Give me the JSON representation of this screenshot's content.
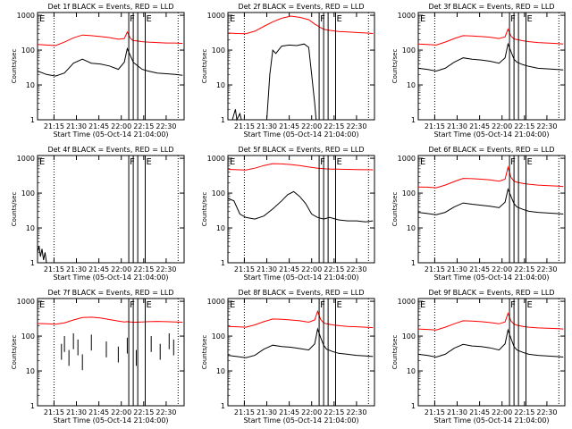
{
  "colors": {
    "events": "#000000",
    "lld": "#ff0000",
    "background": "#ffffff"
  },
  "common": {
    "xlabel": "Start Time (05-Oct-14 21:04:00)",
    "ylabel": "Counts/sec",
    "x_ticks": [
      "21:15",
      "21:30",
      "21:45",
      "22:00",
      "22:15",
      "22:30"
    ],
    "y_ticks": [
      "1",
      "10",
      "100",
      "1000"
    ],
    "flag_f": "F",
    "flag_e": "E"
  },
  "chart_data": [
    {
      "type": "line",
      "title": "Det 1f BLACK = Events, RED = LLD",
      "xlabel": "Start Time (05-Oct-14 21:04:00)",
      "ylabel": "Counts/sec",
      "xlim": [
        "21:04",
        "22:42"
      ],
      "ylim": [
        1,
        1200
      ],
      "yscale": "log",
      "dotted_vlines": [
        "21:15",
        "22:16",
        "22:38"
      ],
      "solid_vlines": [
        "22:05",
        "22:08",
        "22:11",
        "22:16"
      ],
      "series": [
        {
          "name": "Events",
          "color": "#000000",
          "x": [
            "21:04",
            "21:10",
            "21:16",
            "21:22",
            "21:28",
            "21:34",
            "21:40",
            "21:46",
            "21:52",
            "21:58",
            "22:02",
            "22:04",
            "22:06",
            "22:08",
            "22:10",
            "22:14",
            "22:18",
            "22:24",
            "22:30",
            "22:36",
            "22:41"
          ],
          "y": [
            25,
            20,
            18,
            22,
            42,
            55,
            42,
            40,
            35,
            28,
            45,
            110,
            70,
            45,
            38,
            28,
            25,
            22,
            21,
            20,
            19
          ]
        },
        {
          "name": "LLD",
          "color": "#ff0000",
          "x": [
            "21:04",
            "21:10",
            "21:16",
            "21:22",
            "21:28",
            "21:34",
            "21:40",
            "21:46",
            "21:52",
            "21:58",
            "22:02",
            "22:04",
            "22:06",
            "22:08",
            "22:10",
            "22:14",
            "22:18",
            "22:24",
            "22:30",
            "22:36",
            "22:41"
          ],
          "y": [
            145,
            140,
            135,
            170,
            225,
            270,
            260,
            245,
            230,
            205,
            215,
            330,
            220,
            185,
            185,
            175,
            170,
            165,
            160,
            160,
            155
          ]
        }
      ]
    },
    {
      "type": "line",
      "title": "Det 2f BLACK = Events, RED = LLD",
      "xlabel": "Start Time (05-Oct-14 21:04:00)",
      "ylabel": "Counts/sec",
      "xlim": [
        "21:04",
        "22:42"
      ],
      "ylim": [
        1,
        1200
      ],
      "yscale": "log",
      "dotted_vlines": [
        "21:15",
        "22:16",
        "22:38"
      ],
      "solid_vlines": [
        "22:05",
        "22:08",
        "22:11",
        "22:16"
      ],
      "series": [
        {
          "name": "Events",
          "color": "#000000",
          "x": [
            "21:07",
            "21:09",
            "21:10",
            "21:12",
            "21:13",
            "21:30",
            "21:32",
            "21:34",
            "21:36",
            "21:40",
            "21:45",
            "21:50",
            "21:55",
            "21:58",
            "22:00",
            "22:02",
            "22:03"
          ],
          "y": [
            1,
            2,
            1,
            1.5,
            1,
            1,
            20,
            100,
            80,
            130,
            140,
            135,
            150,
            120,
            20,
            3,
            1
          ]
        },
        {
          "name": "LLD",
          "color": "#ff0000",
          "x": [
            "21:04",
            "21:10",
            "21:16",
            "21:22",
            "21:28",
            "21:34",
            "21:40",
            "21:46",
            "21:52",
            "21:58",
            "22:02",
            "22:04",
            "22:06",
            "22:08",
            "22:10",
            "22:14",
            "22:18",
            "22:24",
            "22:30",
            "22:36",
            "22:41"
          ],
          "y": [
            310,
            300,
            295,
            350,
            480,
            650,
            820,
            950,
            870,
            750,
            560,
            500,
            440,
            400,
            380,
            360,
            340,
            330,
            320,
            310,
            300
          ]
        }
      ]
    },
    {
      "type": "line",
      "title": "Det 3f BLACK = Events, RED = LLD",
      "xlabel": "Start Time (05-Oct-14 21:04:00)",
      "ylabel": "Counts/sec",
      "xlim": [
        "21:04",
        "22:42"
      ],
      "ylim": [
        1,
        1200
      ],
      "yscale": "log",
      "dotted_vlines": [
        "21:15",
        "22:16",
        "22:38"
      ],
      "solid_vlines": [
        "22:05",
        "22:08",
        "22:11",
        "22:16"
      ],
      "series": [
        {
          "name": "Events",
          "color": "#000000",
          "x": [
            "21:04",
            "21:10",
            "21:16",
            "21:22",
            "21:28",
            "21:34",
            "21:40",
            "21:46",
            "21:52",
            "21:58",
            "22:02",
            "22:04",
            "22:06",
            "22:08",
            "22:10",
            "22:14",
            "22:18",
            "22:24",
            "22:30",
            "22:36",
            "22:41"
          ],
          "y": [
            30,
            28,
            25,
            30,
            45,
            60,
            55,
            52,
            48,
            42,
            60,
            150,
            90,
            55,
            45,
            38,
            34,
            30,
            29,
            28,
            27
          ]
        },
        {
          "name": "LLD",
          "color": "#ff0000",
          "x": [
            "21:04",
            "21:10",
            "21:16",
            "21:22",
            "21:28",
            "21:34",
            "21:40",
            "21:46",
            "21:52",
            "21:58",
            "22:02",
            "22:04",
            "22:06",
            "22:08",
            "22:10",
            "22:14",
            "22:18",
            "22:24",
            "22:30",
            "22:36",
            "22:41"
          ],
          "y": [
            150,
            145,
            140,
            170,
            215,
            260,
            255,
            245,
            235,
            215,
            240,
            400,
            250,
            210,
            200,
            185,
            175,
            165,
            160,
            155,
            150
          ]
        }
      ]
    },
    {
      "type": "line",
      "title": "Det 4f BLACK = Events, RED = LLD",
      "xlabel": "Start Time (05-Oct-14 21:04:00)",
      "ylabel": "Counts/sec",
      "xlim": [
        "21:04",
        "22:42"
      ],
      "ylim": [
        1,
        1200
      ],
      "yscale": "log",
      "dotted_vlines": [
        "21:15",
        "22:16",
        "22:38"
      ],
      "solid_vlines": [
        "22:05",
        "22:08",
        "22:11",
        "22:16"
      ],
      "series": [
        {
          "name": "Events",
          "color": "#000000",
          "x": [
            "21:04",
            "21:05",
            "21:06",
            "21:07",
            "21:08",
            "21:09",
            "21:10"
          ],
          "y": [
            2,
            3,
            1.5,
            2.5,
            1.2,
            2,
            1
          ]
        }
      ]
    },
    {
      "type": "line",
      "title": "Det 5f BLACK = Events, RED = LLD",
      "xlabel": "Start Time (05-Oct-14 21:04:00)",
      "ylabel": "Counts/sec",
      "xlim": [
        "21:04",
        "22:42"
      ],
      "ylim": [
        1,
        1200
      ],
      "yscale": "log",
      "dotted_vlines": [
        "21:15",
        "22:16",
        "22:38"
      ],
      "solid_vlines": [
        "22:05",
        "22:08",
        "22:11",
        "22:16"
      ],
      "series": [
        {
          "name": "Events",
          "color": "#000000",
          "x": [
            "21:04",
            "21:08",
            "21:12",
            "21:16",
            "21:22",
            "21:28",
            "21:34",
            "21:40",
            "21:44",
            "21:48",
            "21:52",
            "21:56",
            "22:00",
            "22:04",
            "22:08",
            "22:12",
            "22:18",
            "22:24",
            "22:30",
            "22:36",
            "22:41"
          ],
          "y": [
            70,
            60,
            25,
            20,
            18,
            22,
            35,
            60,
            90,
            110,
            80,
            50,
            25,
            20,
            18,
            20,
            17,
            16,
            16,
            15,
            16
          ]
        },
        {
          "name": "LLD",
          "color": "#ff0000",
          "x": [
            "21:04",
            "21:10",
            "21:16",
            "21:22",
            "21:28",
            "21:34",
            "21:40",
            "21:46",
            "21:52",
            "21:58",
            "22:02",
            "22:04",
            "22:06",
            "22:08",
            "22:10",
            "22:14",
            "22:18",
            "22:24",
            "22:30",
            "22:36",
            "22:41"
          ],
          "y": [
            480,
            470,
            460,
            520,
            620,
            700,
            690,
            660,
            620,
            560,
            530,
            520,
            510,
            500,
            495,
            490,
            485,
            480,
            475,
            470,
            465
          ]
        }
      ]
    },
    {
      "type": "line",
      "title": "Det 6f BLACK = Events, RED = LLD",
      "xlabel": "Start Time (05-Oct-14 21:04:00)",
      "ylabel": "Counts/sec",
      "xlim": [
        "21:04",
        "22:42"
      ],
      "ylim": [
        1,
        1200
      ],
      "yscale": "log",
      "dotted_vlines": [
        "21:15",
        "22:16",
        "22:38"
      ],
      "solid_vlines": [
        "22:05",
        "22:08",
        "22:11",
        "22:16"
      ],
      "series": [
        {
          "name": "Events",
          "color": "#000000",
          "x": [
            "21:04",
            "21:10",
            "21:16",
            "21:22",
            "21:28",
            "21:34",
            "21:40",
            "21:46",
            "21:52",
            "21:58",
            "22:02",
            "22:04",
            "22:06",
            "22:08",
            "22:10",
            "22:14",
            "22:18",
            "22:24",
            "22:30",
            "22:36",
            "22:41"
          ],
          "y": [
            28,
            26,
            24,
            28,
            40,
            52,
            48,
            45,
            42,
            38,
            55,
            130,
            80,
            50,
            40,
            34,
            30,
            28,
            27,
            26,
            25
          ]
        },
        {
          "name": "LLD",
          "color": "#ff0000",
          "x": [
            "21:04",
            "21:10",
            "21:16",
            "21:22",
            "21:28",
            "21:34",
            "21:40",
            "21:46",
            "21:52",
            "21:58",
            "22:02",
            "22:04",
            "22:06",
            "22:08",
            "22:10",
            "22:14",
            "22:18",
            "22:24",
            "22:30",
            "22:36",
            "22:41"
          ],
          "y": [
            150,
            148,
            142,
            170,
            215,
            265,
            260,
            250,
            240,
            220,
            250,
            550,
            280,
            220,
            205,
            190,
            180,
            170,
            165,
            160,
            155
          ]
        }
      ]
    },
    {
      "type": "line",
      "title": "Det 7f BLACK = Events, RED = LLD",
      "xlabel": "Start Time (05-Oct-14 21:04:00)",
      "ylabel": "Counts/sec",
      "xlim": [
        "21:04",
        "22:42"
      ],
      "ylim": [
        1,
        1200
      ],
      "yscale": "log",
      "dotted_vlines": [
        "21:15",
        "22:16",
        "22:38"
      ],
      "solid_vlines": [
        "22:05",
        "22:08",
        "22:11",
        "22:16"
      ],
      "series": [
        {
          "name": "Events",
          "color": "#000000",
          "x": [
            "21:20",
            "21:22",
            "21:25",
            "21:28",
            "21:31",
            "21:34",
            "21:40",
            "21:50",
            "21:58",
            "22:04",
            "22:10",
            "22:20",
            "22:26",
            "22:32",
            "22:35"
          ],
          "y": [
            60,
            100,
            40,
            120,
            80,
            30,
            110,
            70,
            50,
            90,
            40,
            100,
            60,
            120,
            80
          ]
        },
        {
          "name": "LLD",
          "color": "#ff0000",
          "x": [
            "21:04",
            "21:10",
            "21:16",
            "21:22",
            "21:28",
            "21:34",
            "21:40",
            "21:46",
            "21:52",
            "21:58",
            "22:02",
            "22:04",
            "22:06",
            "22:08",
            "22:10",
            "22:14",
            "22:18",
            "22:24",
            "22:30",
            "22:36",
            "22:41"
          ],
          "y": [
            230,
            225,
            220,
            240,
            290,
            340,
            350,
            330,
            300,
            270,
            255,
            260,
            255,
            250,
            250,
            255,
            260,
            265,
            260,
            255,
            250
          ]
        }
      ]
    },
    {
      "type": "line",
      "title": "Det 8f BLACK = Events, RED = LLD",
      "xlabel": "Start Time (05-Oct-14 21:04:00)",
      "ylabel": "Counts/sec",
      "xlim": [
        "21:04",
        "22:42"
      ],
      "ylim": [
        1,
        1200
      ],
      "yscale": "log",
      "dotted_vlines": [
        "21:15",
        "22:16",
        "22:38"
      ],
      "solid_vlines": [
        "22:05",
        "22:08",
        "22:11",
        "22:16"
      ],
      "series": [
        {
          "name": "Events",
          "color": "#000000",
          "x": [
            "21:04",
            "21:10",
            "21:16",
            "21:22",
            "21:28",
            "21:34",
            "21:40",
            "21:46",
            "21:52",
            "21:58",
            "22:02",
            "22:04",
            "22:06",
            "22:08",
            "22:10",
            "22:14",
            "22:18",
            "22:24",
            "22:30",
            "22:36",
            "22:41"
          ],
          "y": [
            28,
            26,
            24,
            28,
            42,
            55,
            50,
            48,
            44,
            40,
            60,
            160,
            90,
            55,
            42,
            36,
            32,
            30,
            28,
            27,
            26
          ]
        },
        {
          "name": "LLD",
          "color": "#ff0000",
          "x": [
            "21:04",
            "21:10",
            "21:16",
            "21:22",
            "21:28",
            "21:34",
            "21:40",
            "21:46",
            "21:52",
            "21:58",
            "22:02",
            "22:04",
            "22:06",
            "22:08",
            "22:10",
            "22:14",
            "22:18",
            "22:24",
            "22:30",
            "22:36",
            "22:41"
          ],
          "y": [
            190,
            185,
            180,
            210,
            260,
            310,
            305,
            290,
            275,
            250,
            290,
            520,
            300,
            240,
            225,
            210,
            200,
            190,
            185,
            180,
            175
          ]
        }
      ]
    },
    {
      "type": "line",
      "title": "Det 9f BLACK = Events, RED = LLD",
      "xlabel": "Start Time (05-Oct-14 21:04:00)",
      "ylabel": "Counts/sec",
      "xlim": [
        "21:04",
        "22:42"
      ],
      "ylim": [
        1,
        1200
      ],
      "yscale": "log",
      "dotted_vlines": [
        "21:15",
        "22:16",
        "22:38"
      ],
      "solid_vlines": [
        "22:05",
        "22:08",
        "22:11",
        "22:16"
      ],
      "series": [
        {
          "name": "Events",
          "color": "#000000",
          "x": [
            "21:04",
            "21:10",
            "21:16",
            "21:22",
            "21:28",
            "21:34",
            "21:40",
            "21:46",
            "21:52",
            "21:58",
            "22:02",
            "22:04",
            "22:06",
            "22:08",
            "22:10",
            "22:14",
            "22:18",
            "22:24",
            "22:30",
            "22:36",
            "22:41"
          ],
          "y": [
            30,
            28,
            25,
            30,
            45,
            58,
            52,
            50,
            46,
            40,
            60,
            150,
            85,
            50,
            40,
            34,
            30,
            28,
            27,
            26,
            25
          ]
        },
        {
          "name": "LLD",
          "color": "#ff0000",
          "x": [
            "21:04",
            "21:10",
            "21:16",
            "21:22",
            "21:28",
            "21:34",
            "21:40",
            "21:46",
            "21:52",
            "21:58",
            "22:02",
            "22:04",
            "22:06",
            "22:08",
            "22:10",
            "22:14",
            "22:18",
            "22:24",
            "22:30",
            "22:36",
            "22:41"
          ],
          "y": [
            160,
            155,
            150,
            180,
            225,
            275,
            270,
            260,
            245,
            225,
            255,
            450,
            270,
            220,
            205,
            190,
            180,
            172,
            168,
            165,
            160
          ]
        }
      ]
    }
  ]
}
